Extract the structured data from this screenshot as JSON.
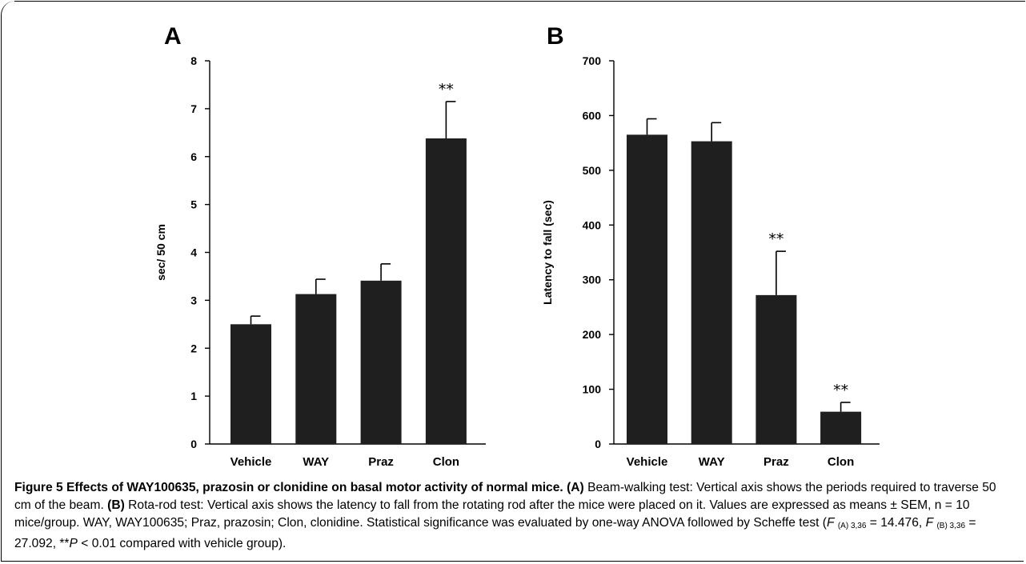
{
  "chart_data": [
    {
      "type": "bar",
      "panel_label": "A",
      "categories": [
        "Vehicle",
        "WAY",
        "Praz",
        "Clon"
      ],
      "values": [
        2.5,
        3.13,
        3.41,
        6.38
      ],
      "errors": [
        0.17,
        0.31,
        0.35,
        0.77
      ],
      "annotations": [
        "",
        "",
        "",
        "**"
      ],
      "ylabel": "sec/ 50 cm",
      "xlabel": "",
      "ylim": [
        0,
        8
      ],
      "yticks": [
        0,
        1,
        2,
        3,
        4,
        5,
        6,
        7,
        8
      ],
      "bar_color": "#1f1f1f"
    },
    {
      "type": "bar",
      "panel_label": "B",
      "categories": [
        "Vehicle",
        "WAY",
        "Praz",
        "Clon"
      ],
      "values": [
        565,
        553,
        272,
        59
      ],
      "errors": [
        29,
        34,
        80,
        17
      ],
      "annotations": [
        "",
        "",
        "**",
        "**"
      ],
      "ylabel": "Latency to fall  (sec)",
      "xlabel": "",
      "ylim": [
        0,
        700
      ],
      "yticks": [
        0,
        100,
        200,
        300,
        400,
        500,
        600,
        700
      ],
      "bar_color": "#1f1f1f"
    }
  ],
  "caption": {
    "figure_title": "Figure 5 Effects of WAY100635, prazosin or clonidine on basal motor activity of normal mice.",
    "label_a": "(A)",
    "text_a": "Beam-walking test: Vertical axis shows the periods required to traverse 50 cm of the beam.",
    "label_b": "(B)",
    "text_b": "Rota-rod test: Vertical axis shows the latency to fall from the rotating rod after the mice were placed on it. Values are expressed as means ± SEM, n = 10 mice/group. WAY, WAY100635; Praz, prazosin; Clon, clonidine. Statistical significance was evaluated by one-way ANOVA followed by Scheffe test (",
    "f_symbol": "F",
    "f_a_sub": "(A) 3,36",
    "f_a_value": "= 14.476, ",
    "f_b_sub": "(B) 3,36",
    "f_b_value": "= 27.092, **",
    "p_symbol": "P",
    "p_text": "< 0.01 compared with vehicle group)."
  }
}
